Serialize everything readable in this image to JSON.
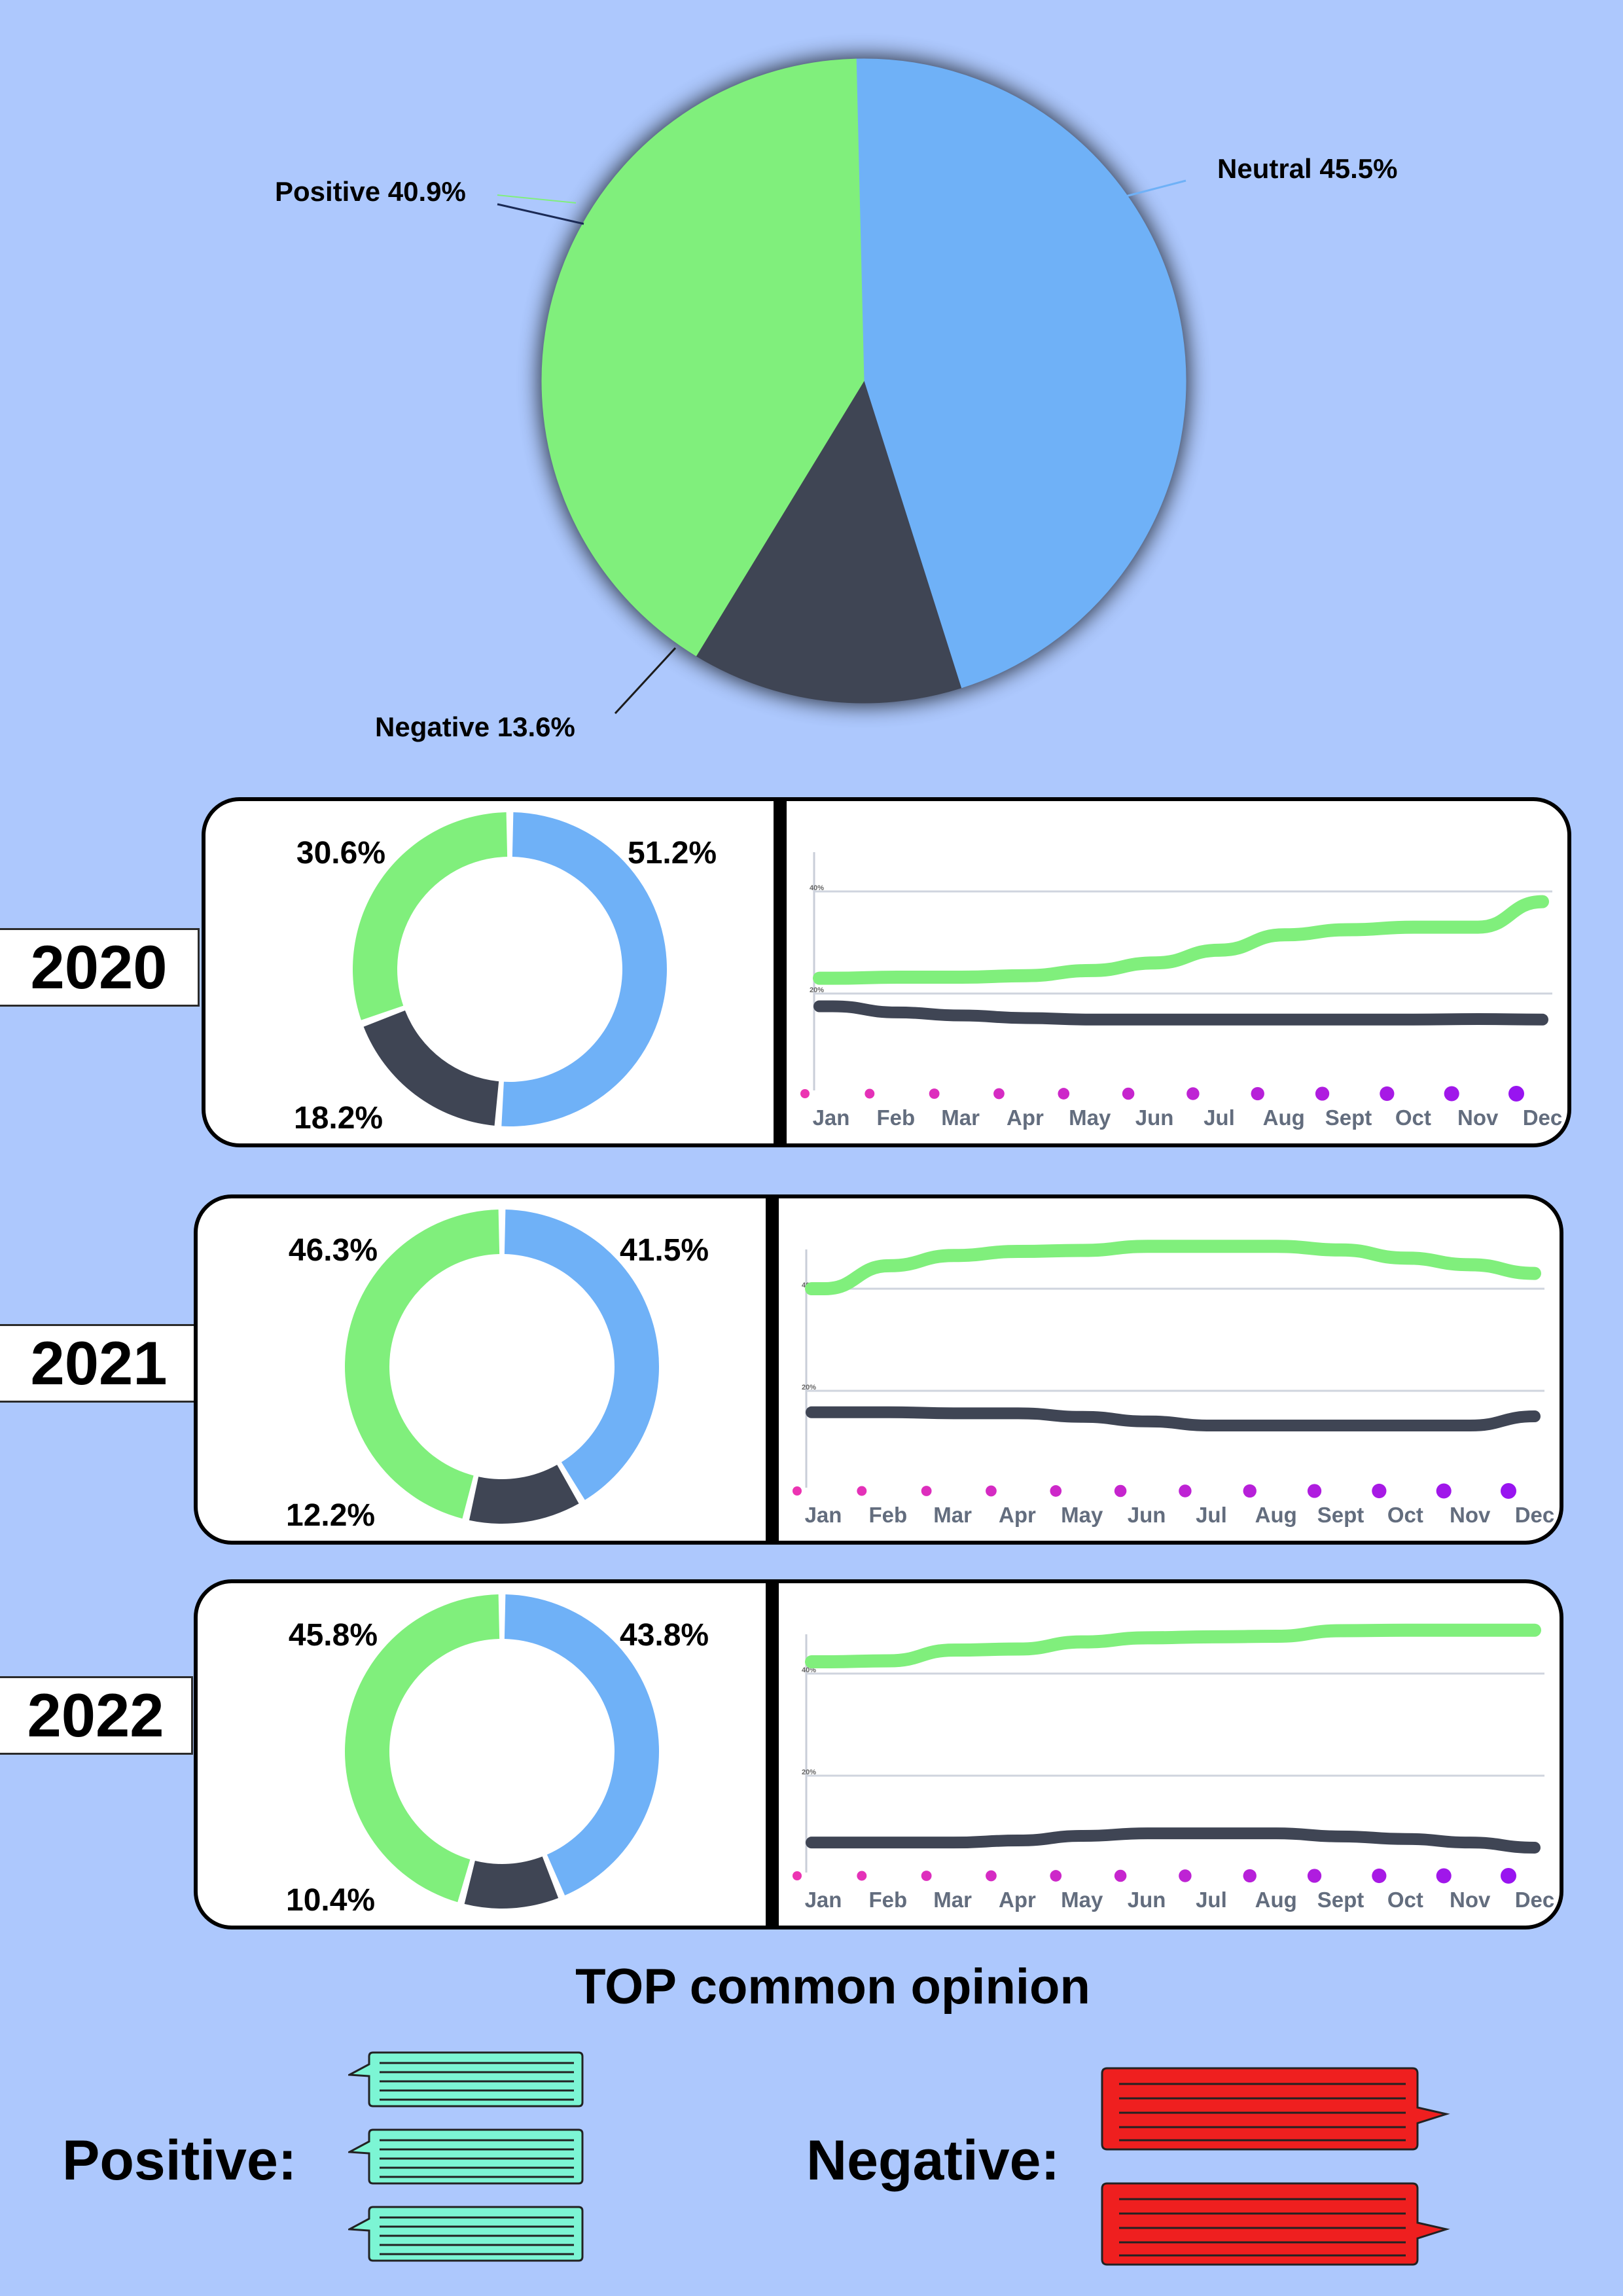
{
  "colors": {
    "background": "#adc8fd",
    "positive": "#80ef7c",
    "neutral": "#6fb1f7",
    "negative": "#3f4554",
    "positive_bubble": "#7cf5d4",
    "negative_bubble": "#ef1f1f"
  },
  "chart_data": [
    {
      "type": "pie",
      "categories": [
        "Positive",
        "Neutral",
        "Negative"
      ],
      "values": [
        40.9,
        45.5,
        13.6
      ],
      "labels": [
        "Positive 40.9%",
        "Neutral 45.5%",
        "Negative 13.6%"
      ]
    },
    {
      "type": "donut",
      "year": "2020",
      "categories": [
        "Neutral",
        "Negative",
        "Positive"
      ],
      "values": [
        51.2,
        18.2,
        30.6
      ],
      "labels": [
        "51.2%",
        "18.2%",
        "30.6%"
      ]
    },
    {
      "type": "line",
      "year": "2020",
      "x": [
        "Jan",
        "Feb",
        "Mar",
        "Apr",
        "May",
        "Jun",
        "Jul",
        "Aug",
        "Sept",
        "Oct",
        "Nov",
        "Dec"
      ],
      "y_ticks": [
        "20%",
        "40%"
      ],
      "ylim": [
        0,
        50
      ],
      "series": [
        {
          "key": "positive",
          "values": [
            23,
            23.2,
            23.2,
            23.5,
            24.5,
            26,
            28.5,
            31.5,
            32.5,
            33,
            33,
            38
          ]
        },
        {
          "key": "negative",
          "values": [
            17.5,
            16.3,
            15.7,
            15.2,
            14.9,
            14.9,
            14.9,
            14.9,
            14.9,
            14.9,
            15,
            14.9
          ]
        }
      ]
    },
    {
      "type": "donut",
      "year": "2021",
      "categories": [
        "Neutral",
        "Negative",
        "Positive"
      ],
      "values": [
        41.5,
        12.2,
        46.3
      ],
      "labels": [
        "41.5%",
        "12.2%",
        "46.3%"
      ]
    },
    {
      "type": "line",
      "year": "2021",
      "x": [
        "Jan",
        "Feb",
        "Mar",
        "Apr",
        "May",
        "Jun",
        "Jul",
        "Aug",
        "Sept",
        "Oct",
        "Nov",
        "Dec"
      ],
      "y_ticks": [
        "20%",
        "40%"
      ],
      "ylim": [
        0,
        50
      ],
      "series": [
        {
          "key": "positive",
          "values": [
            40,
            44.5,
            46.5,
            47.3,
            47.5,
            48.3,
            48.3,
            48.3,
            47.6,
            46,
            44.7,
            43
          ]
        },
        {
          "key": "negative",
          "values": [
            15.8,
            15.8,
            15.6,
            15.6,
            14.9,
            14,
            13.2,
            13.2,
            13.2,
            13.2,
            13.2,
            15
          ]
        }
      ]
    },
    {
      "type": "donut",
      "year": "2022",
      "categories": [
        "Neutral",
        "Negative",
        "Positive"
      ],
      "values": [
        43.8,
        10.4,
        45.8
      ],
      "labels": [
        "43.8%",
        "10.4%",
        "45.8%"
      ]
    },
    {
      "type": "line",
      "year": "2022",
      "x": [
        "Jan",
        "Feb",
        "Mar",
        "Apr",
        "May",
        "Jun",
        "Jul",
        "Aug",
        "Sept",
        "Oct",
        "Nov",
        "Dec"
      ],
      "y_ticks": [
        "20%",
        "40%"
      ],
      "ylim": [
        0,
        50
      ],
      "series": [
        {
          "key": "positive",
          "values": [
            42.3,
            42.5,
            44.6,
            44.8,
            46.2,
            47,
            47.2,
            47.3,
            48.4,
            48.5,
            48.5,
            48.5
          ]
        },
        {
          "key": "negative",
          "values": [
            6.9,
            6.9,
            6.9,
            7.3,
            8.2,
            8.7,
            8.7,
            8.7,
            8.1,
            7.6,
            6.9,
            5.9
          ]
        }
      ]
    }
  ],
  "opinion": {
    "title": "TOP common opinion",
    "positive_label": "Positive:",
    "negative_label": "Negative:"
  }
}
